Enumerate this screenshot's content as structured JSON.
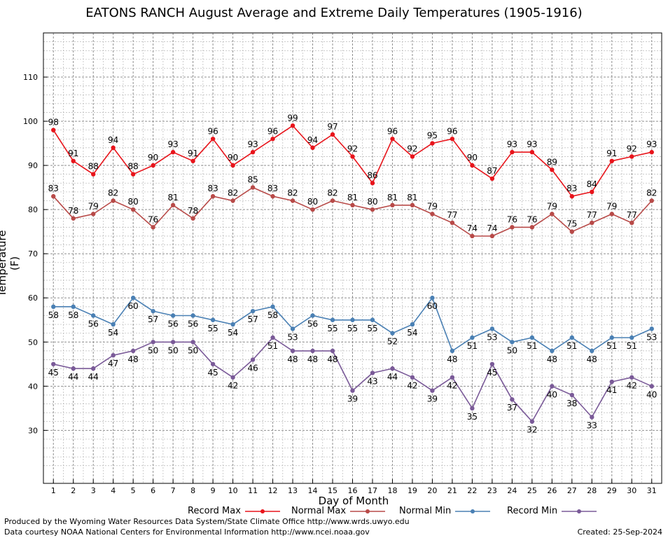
{
  "title": "EATONS RANCH August Average and Extreme Daily Temperatures (1905-1916)",
  "footer": {
    "line1": "Produced by the Wyoming Water Resources Data System/State Climate Office http://www.wrds.uwyo.edu",
    "line2": "Data courtesy NOAA National Centers for Environmental Information http://www.ncei.noaa.gov",
    "created": "Created:  25-Sep-2024"
  },
  "chart_data": {
    "type": "line",
    "title": "EATONS RANCH August Average and Extreme Daily Temperatures (1905-1916)",
    "xlabel": "Day of Month",
    "ylabel": "Temperature (F)",
    "ylim": [
      18,
      120
    ],
    "yticks": [
      30,
      40,
      50,
      60,
      70,
      80,
      90,
      100,
      110
    ],
    "grid": true,
    "legend_position": "bottom",
    "x": [
      1,
      2,
      3,
      4,
      5,
      6,
      7,
      8,
      9,
      10,
      11,
      12,
      13,
      14,
      15,
      16,
      17,
      18,
      19,
      20,
      21,
      22,
      23,
      24,
      25,
      26,
      27,
      28,
      29,
      30,
      31
    ],
    "series": [
      {
        "name": "Record Max",
        "color": "#e8141b",
        "label_pos": "above",
        "values": [
          98,
          91,
          88,
          94,
          88,
          90,
          93,
          91,
          96,
          90,
          93,
          96,
          99,
          94,
          97,
          92,
          86,
          96,
          92,
          95,
          96,
          90,
          87,
          93,
          93,
          89,
          83,
          84,
          91,
          92,
          93
        ]
      },
      {
        "name": "Normal Max",
        "color": "#b84a48",
        "label_pos": "above",
        "values": [
          83,
          78,
          79,
          82,
          80,
          76,
          81,
          78,
          83,
          82,
          85,
          83,
          82,
          80,
          82,
          81,
          80,
          81,
          81,
          79,
          77,
          74,
          74,
          76,
          76,
          79,
          75,
          77,
          79,
          77,
          82
        ]
      },
      {
        "name": "Normal Min",
        "color": "#4a80b4",
        "label_pos": "below",
        "values": [
          58,
          58,
          56,
          54,
          60,
          57,
          56,
          56,
          55,
          54,
          57,
          58,
          53,
          56,
          55,
          55,
          55,
          52,
          54,
          60,
          48,
          51,
          53,
          50,
          51,
          48,
          51,
          48,
          51,
          51,
          53
        ]
      },
      {
        "name": "Record Min",
        "color": "#7a5a98",
        "label_pos": "below",
        "values": [
          45,
          44,
          44,
          47,
          48,
          50,
          50,
          50,
          45,
          42,
          46,
          51,
          48,
          48,
          48,
          39,
          43,
          44,
          42,
          39,
          42,
          35,
          45,
          37,
          32,
          40,
          38,
          33,
          41,
          42,
          40
        ]
      }
    ]
  }
}
